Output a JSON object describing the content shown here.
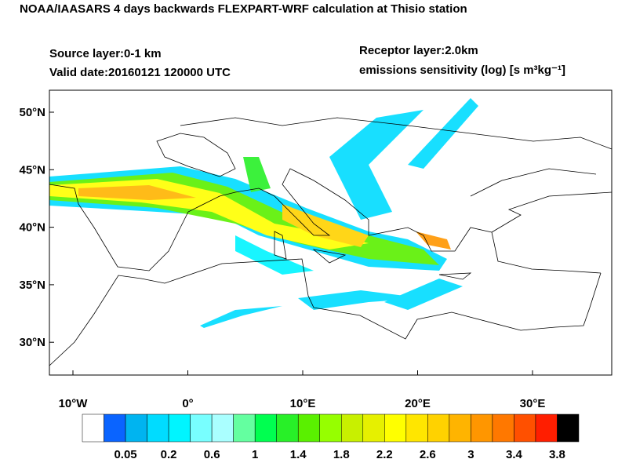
{
  "header": {
    "title": "NOAA/IAASARS 4 days backwards FLEXPART-WRF calculation at Thisio station",
    "source_layer": "Source layer:0-1 km",
    "valid_date": "Valid date:20160121 120000 UTC",
    "receptor_layer": "Receptor layer:2.0km",
    "units": "emissions sensitivity (log) [s m³kg⁻¹]"
  },
  "map": {
    "lon_labels": [
      "10°W",
      "0°",
      "10°E",
      "20°E",
      "30°E"
    ],
    "lat_labels": [
      "50°N",
      "45°N",
      "40°N",
      "35°N",
      "30°N"
    ]
  },
  "colorbar": {
    "labels": [
      "0.05",
      "0.2",
      "0.6",
      "1",
      "1.4",
      "1.8",
      "2.2",
      "2.6",
      "3",
      "3.4",
      "3.8"
    ],
    "colors": [
      "#ffffff",
      "#0a64ff",
      "#00b4f0",
      "#00dcff",
      "#00f5ff",
      "#78ffff",
      "#aaffff",
      "#64ffa0",
      "#00ff50",
      "#28f028",
      "#5af000",
      "#96ff00",
      "#c8f000",
      "#e6f000",
      "#ffff00",
      "#ffe600",
      "#ffd200",
      "#ffb400",
      "#ff9600",
      "#ff7800",
      "#ff5000",
      "#ff1e00",
      "#000000"
    ]
  }
}
